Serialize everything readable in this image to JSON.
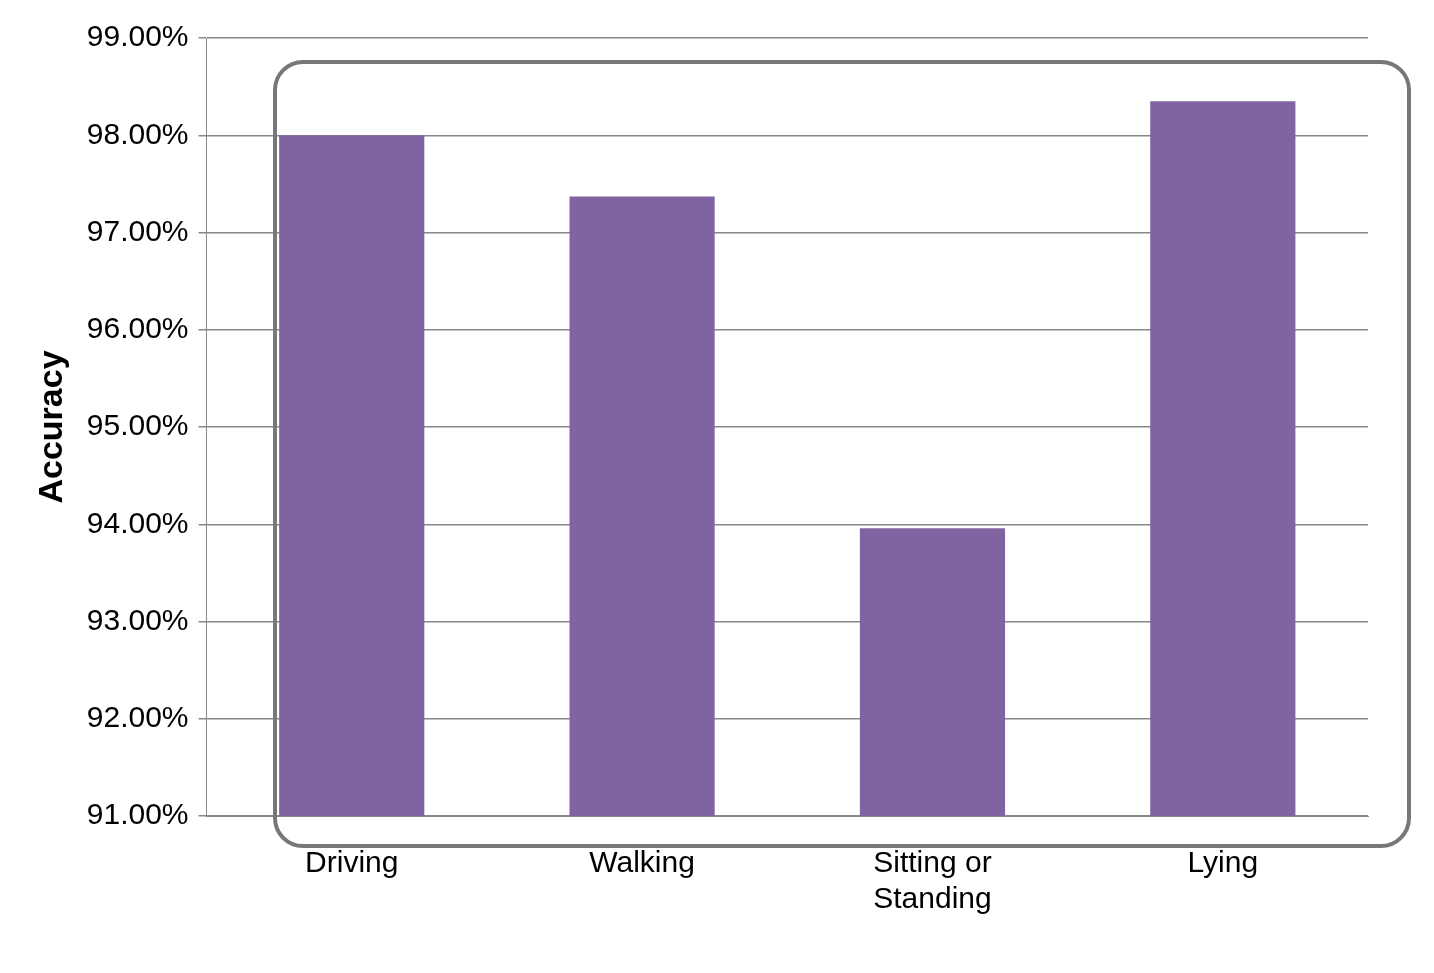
{
  "chart_data": {
    "type": "bar",
    "ylabel": "Accuracy",
    "categories": [
      "Driving",
      "Walking",
      "Sitting or Standing",
      "Lying"
    ],
    "values": [
      98.0,
      97.37,
      93.96,
      98.35
    ],
    "color": "#8064a2",
    "ylim": [
      91,
      99
    ],
    "yticks": [
      {
        "value": 91,
        "label": "91.00%"
      },
      {
        "value": 92,
        "label": "92.00%"
      },
      {
        "value": 93,
        "label": "93.00%"
      },
      {
        "value": 94,
        "label": "94.00%"
      },
      {
        "value": 95,
        "label": "95.00%"
      },
      {
        "value": 96,
        "label": "96.00%"
      },
      {
        "value": 97,
        "label": "97.00%"
      },
      {
        "value": 98,
        "label": "98.00%"
      },
      {
        "value": 99,
        "label": "99.00%"
      }
    ],
    "grid": "y",
    "legend": false
  }
}
